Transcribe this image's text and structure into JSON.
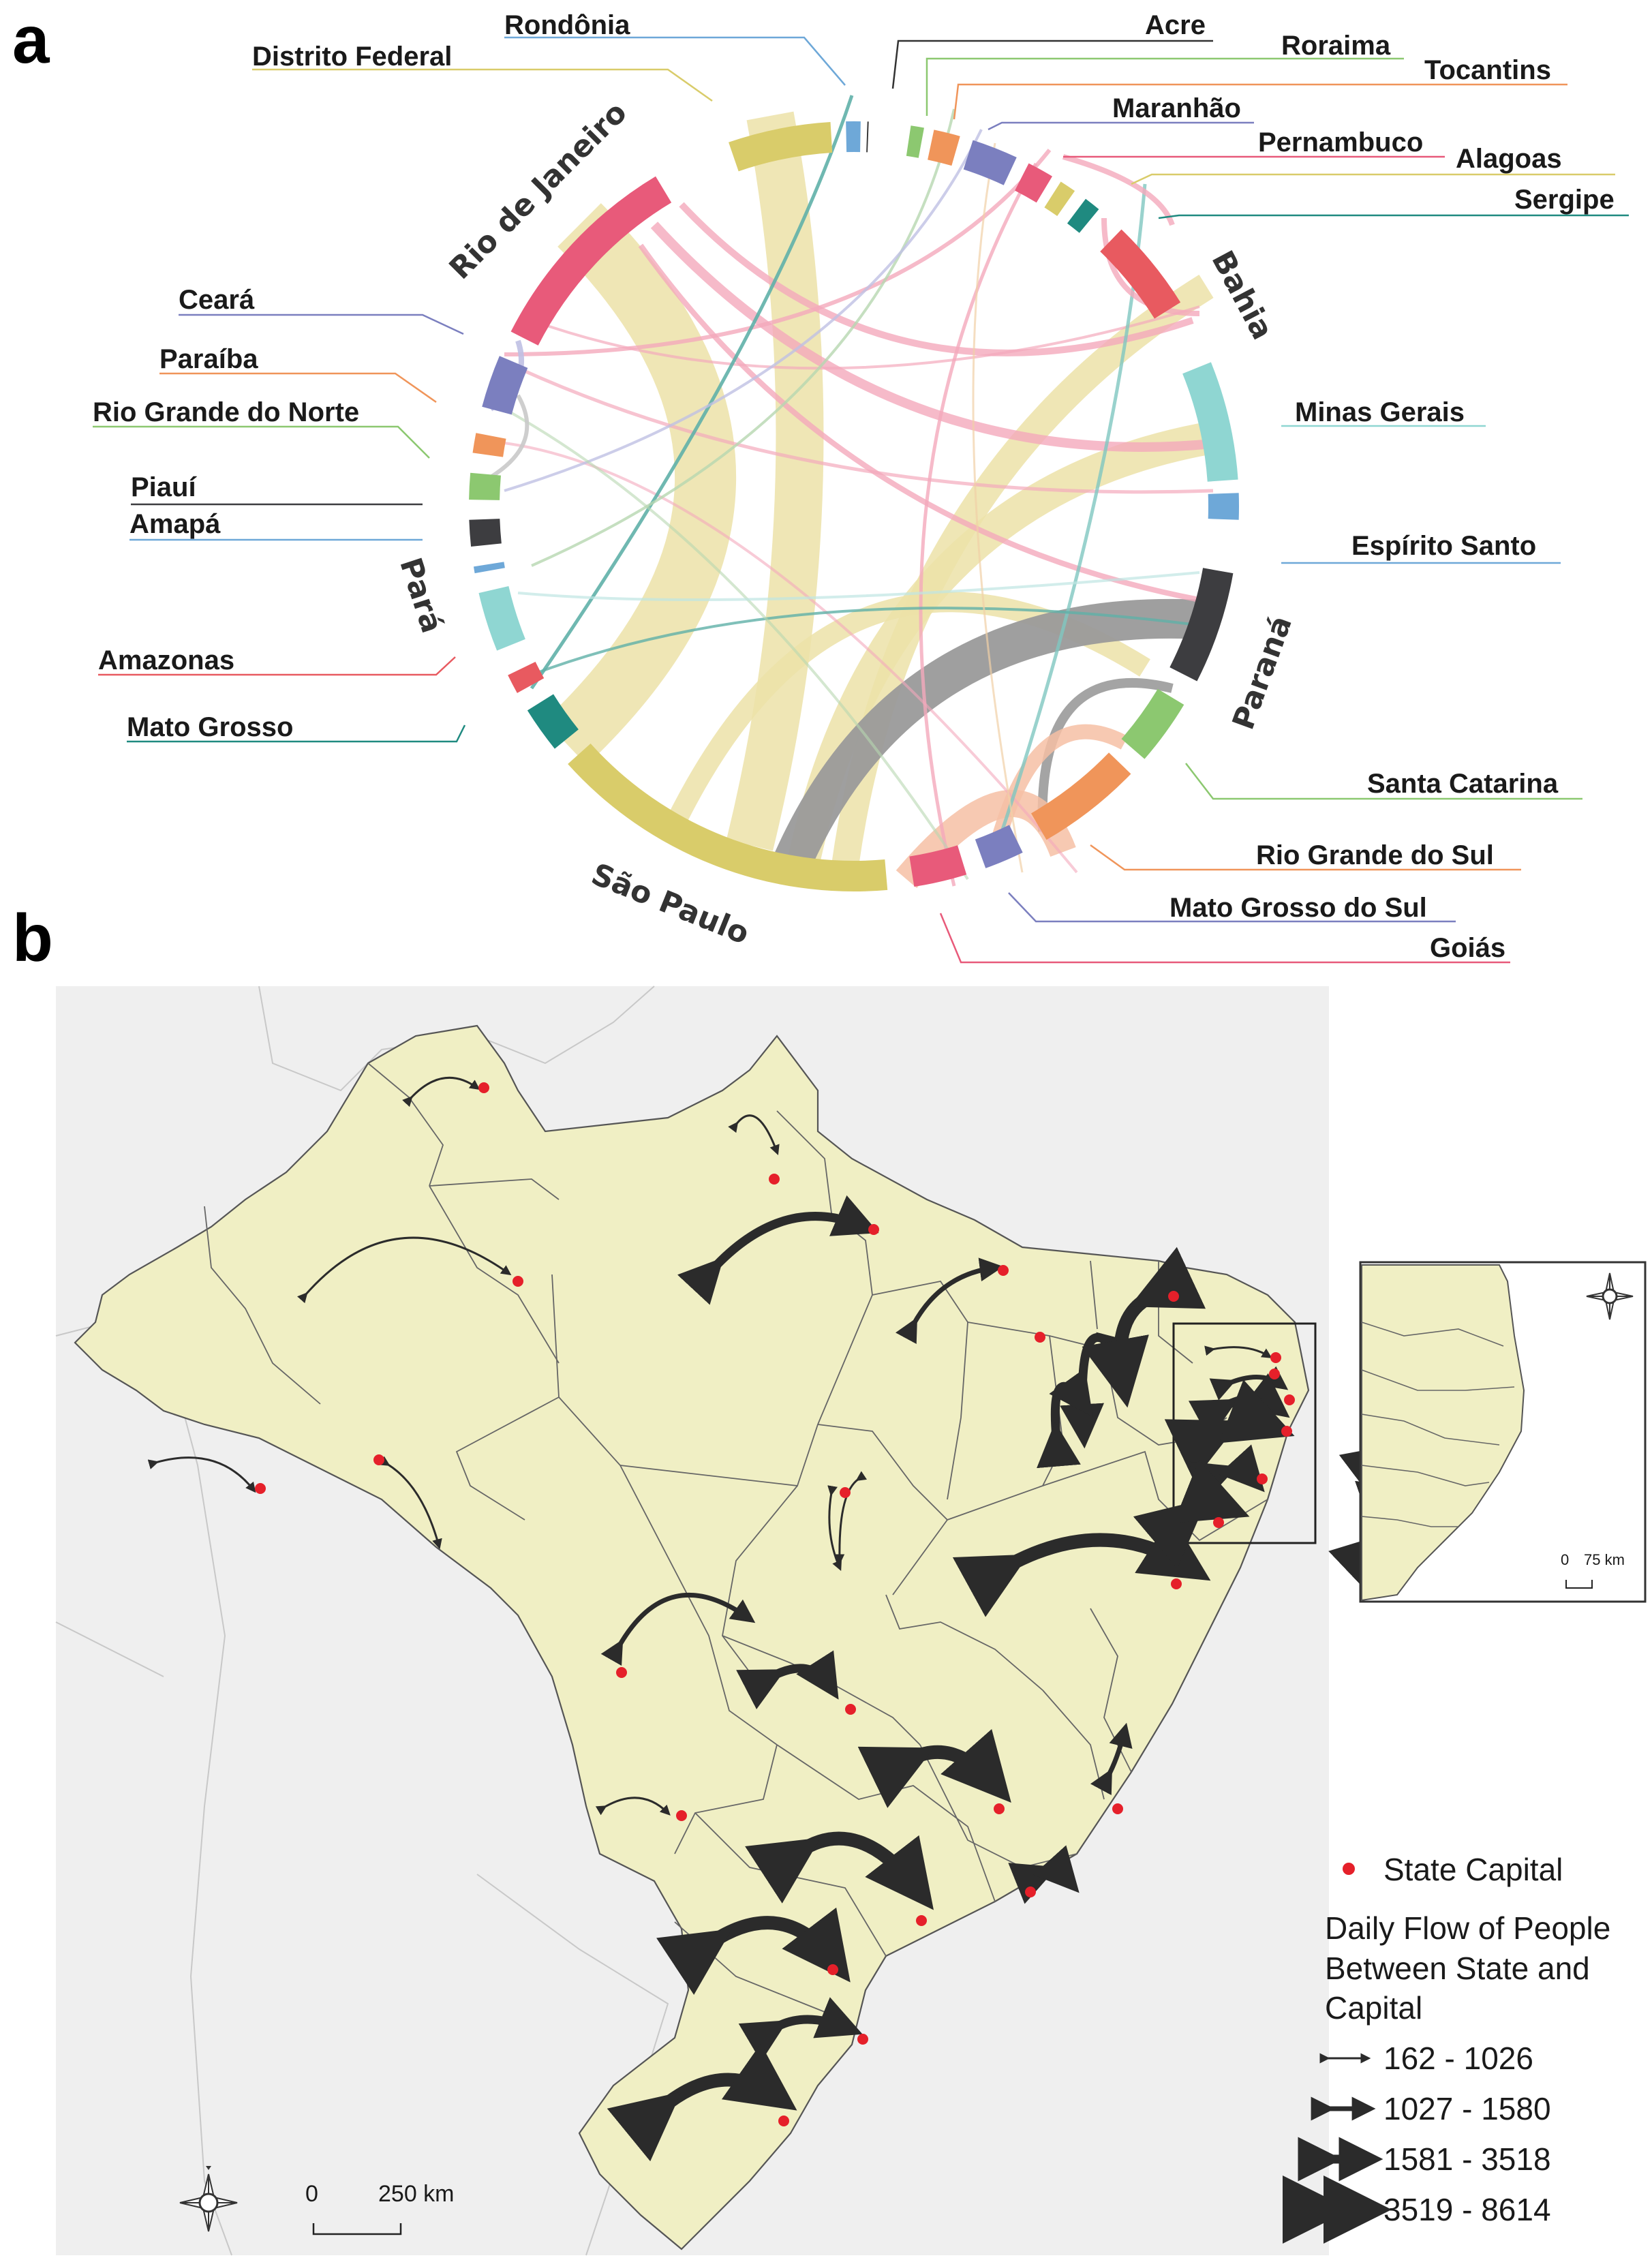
{
  "panels": {
    "a": "a",
    "b": "b"
  },
  "chord": {
    "states": [
      {
        "name": "Rondônia",
        "color": "#6ea8d8"
      },
      {
        "name": "Distrito Federal",
        "color": "#d9cc6a"
      },
      {
        "name": "Acre",
        "color": "#333333"
      },
      {
        "name": "Roraima",
        "color": "#8cc870"
      },
      {
        "name": "Tocantins",
        "color": "#f0955a"
      },
      {
        "name": "Maranhão",
        "color": "#7b7fbf"
      },
      {
        "name": "Pernambuco",
        "color": "#e85a7a"
      },
      {
        "name": "Alagoas",
        "color": "#d9cc6a"
      },
      {
        "name": "Sergipe",
        "color": "#1f8a80"
      },
      {
        "name": "Bahia",
        "color": "#e85a60"
      },
      {
        "name": "Minas Gerais",
        "color": "#8fd6d2"
      },
      {
        "name": "Espírito Santo",
        "color": "#6ea8d8"
      },
      {
        "name": "Paraná",
        "color": "#3d3d40"
      },
      {
        "name": "Santa Catarina",
        "color": "#8cc870"
      },
      {
        "name": "Rio Grande do Sul",
        "color": "#f0955a"
      },
      {
        "name": "Mato Grosso do Sul",
        "color": "#7b7fbf"
      },
      {
        "name": "Goiás",
        "color": "#e85a7a"
      },
      {
        "name": "São Paulo",
        "color": "#d9cc6a"
      },
      {
        "name": "Mato Grosso",
        "color": "#1f8a80"
      },
      {
        "name": "Amazonas",
        "color": "#e85a60"
      },
      {
        "name": "Pará",
        "color": "#8fd6d2"
      },
      {
        "name": "Amapá",
        "color": "#6ea8d8"
      },
      {
        "name": "Piauí",
        "color": "#3d3d40"
      },
      {
        "name": "Rio Grande do Norte",
        "color": "#8cc870"
      },
      {
        "name": "Paraíba",
        "color": "#f0955a"
      },
      {
        "name": "Ceará",
        "color": "#7b7fbf"
      },
      {
        "name": "Rio de Janeiro",
        "color": "#e85a7a"
      }
    ]
  },
  "map": {
    "legend": {
      "capital_label": "State Capital",
      "title_lines": [
        "Daily Flow of People",
        "Between State and",
        "Capital"
      ],
      "classes": [
        "162 - 1026",
        "1027 - 1580",
        "1581 - 3518",
        "3519 - 8614"
      ],
      "capital_color": "#e5202a"
    },
    "scale": {
      "zero": "0",
      "distance": "250 km"
    },
    "inset_scale": {
      "zero": "0",
      "distance": "75 km"
    },
    "land_color": "#f0efc4",
    "neighbor_color": "#efefef"
  }
}
